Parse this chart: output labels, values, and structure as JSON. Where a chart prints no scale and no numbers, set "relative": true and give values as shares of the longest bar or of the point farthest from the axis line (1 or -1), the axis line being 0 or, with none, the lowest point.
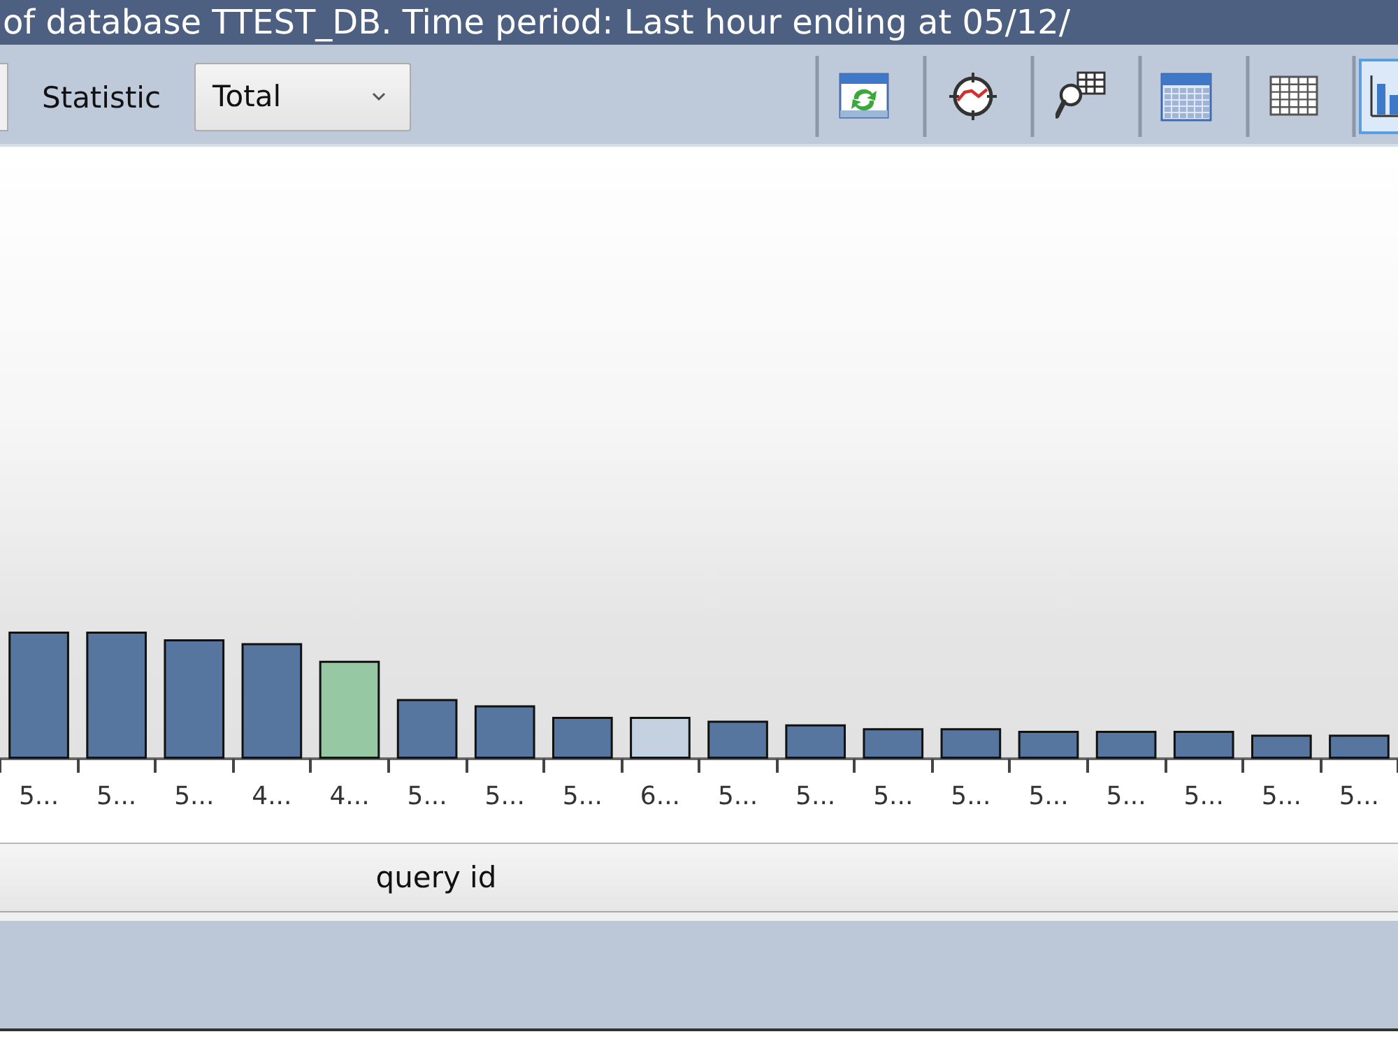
{
  "chart_data": {
    "type": "bar",
    "title": "of database TTEST_DB. Time period: Last hour ending at 05/12/",
    "xlabel": "query id",
    "annotations": [
      "Statistic",
      "Total"
    ],
    "categories": [
      "5...",
      "5...",
      "5...",
      "4...",
      "4...",
      "5...",
      "5...",
      "5...",
      "6...",
      "5...",
      "5...",
      "5...",
      "5...",
      "5...",
      "5...",
      "5...",
      "5...",
      "5..."
    ],
    "values": [
      1,
      1,
      0.94,
      0.91,
      0.77,
      0.47,
      0.42,
      0.33,
      0.33,
      0.3,
      0.27,
      0.24,
      0.24,
      0.22,
      0.22,
      0.22,
      0.19,
      0.19
    ],
    "colors": [
      "#56769f",
      "#56769f",
      "#56769f",
      "#56769f",
      "#96c8a3",
      "#56769f",
      "#56769f",
      "#56769f",
      "#c3d1e0",
      "#56769f",
      "#56769f",
      "#56769f",
      "#56769f",
      "#56769f",
      "#56769f",
      "#56769f",
      "#56769f",
      "#56769f"
    ],
    "relative": true
  }
}
